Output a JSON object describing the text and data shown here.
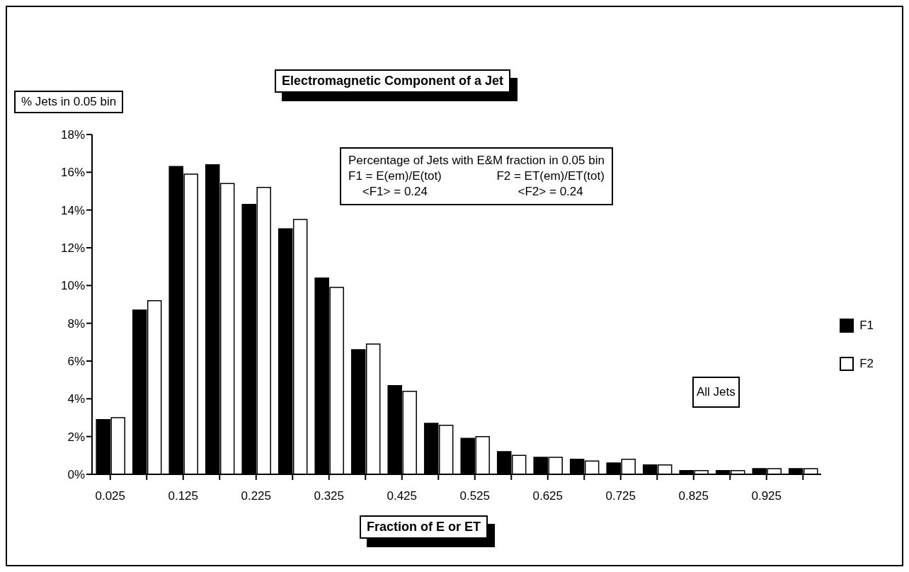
{
  "chart_data": {
    "type": "bar",
    "title": "Electromagnetic Component of a Jet",
    "xlabel": "Fraction of E or ET",
    "ylabel": "% Jets in 0.05 bin",
    "categories": [
      "0.025",
      null,
      "0.125",
      null,
      "0.225",
      null,
      "0.325",
      null,
      "0.425",
      null,
      "0.525",
      null,
      "0.625",
      null,
      "0.725",
      null,
      "0.825",
      null,
      "0.925",
      null
    ],
    "series": [
      {
        "name": "F1",
        "color": "#000000",
        "values": [
          2.9,
          8.7,
          16.3,
          16.4,
          14.3,
          13.0,
          10.4,
          6.6,
          4.7,
          2.7,
          1.9,
          1.2,
          0.9,
          0.8,
          0.6,
          0.5,
          0.2,
          0.2,
          0.3,
          0.3
        ]
      },
      {
        "name": "F2",
        "color": "#ffffff",
        "values": [
          3.0,
          9.2,
          15.9,
          15.4,
          15.2,
          13.5,
          9.9,
          6.9,
          4.4,
          2.6,
          2.0,
          1.0,
          0.9,
          0.7,
          0.8,
          0.5,
          0.2,
          0.2,
          0.3,
          0.3
        ]
      }
    ],
    "ylim": [
      0,
      18
    ],
    "yticks": [
      {
        "value": 0,
        "label": "0%"
      },
      {
        "value": 2,
        "label": "2%"
      },
      {
        "value": 4,
        "label": "4%"
      },
      {
        "value": 6,
        "label": "6%"
      },
      {
        "value": 8,
        "label": "8%"
      },
      {
        "value": 10,
        "label": "10%"
      },
      {
        "value": 12,
        "label": "12%"
      },
      {
        "value": 14,
        "label": "14%"
      },
      {
        "value": 16,
        "label": "16%"
      },
      {
        "value": 18,
        "label": "18%"
      }
    ],
    "grid": false,
    "legend": "right",
    "annotations": [
      "Percentage of Jets with E&M fraction in 0.05 bin",
      "F1 = E(em)/E(tot)",
      "F2 = ET(em)/ET(tot)",
      "<F1> = 0.24",
      "<F2> = 0.24",
      "All Jets"
    ]
  }
}
